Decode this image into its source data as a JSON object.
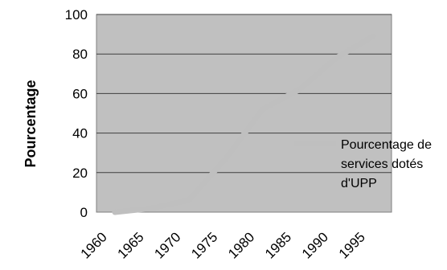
{
  "chart_data": {
    "type": "line",
    "title": "",
    "xlabel": "",
    "ylabel": "Pourcentage",
    "x": [
      1960,
      1965,
      1970,
      1975,
      1980,
      1985,
      1990,
      1995
    ],
    "ylim": [
      0,
      100
    ],
    "yticks": [
      0,
      20,
      40,
      60,
      80,
      100
    ],
    "grid": true,
    "legend_position": "right",
    "series": [
      {
        "name": "Pourcentage de services dotés d'UPP",
        "name_lines": [
          "Pourcentage de",
          "services dotés",
          "d'UPP"
        ],
        "color": "#bfbfbf",
        "points": [
          {
            "x": 1962.5,
            "y": 0
          },
          {
            "x": 1967.5,
            "y": 2
          },
          {
            "x": 1972.5,
            "y": 6
          },
          {
            "x": 1977.5,
            "y": 27
          },
          {
            "x": 1982.5,
            "y": 52
          },
          {
            "x": 1987.5,
            "y": 62
          },
          {
            "x": 1992.5,
            "y": 78
          },
          {
            "x": 1997.5,
            "y": 89
          }
        ]
      }
    ]
  },
  "colors": {
    "plot_background": "#c0c0c0",
    "grid": "#3f3f3f",
    "axis": "#7f7f7f",
    "series": "#bfbfbf"
  }
}
